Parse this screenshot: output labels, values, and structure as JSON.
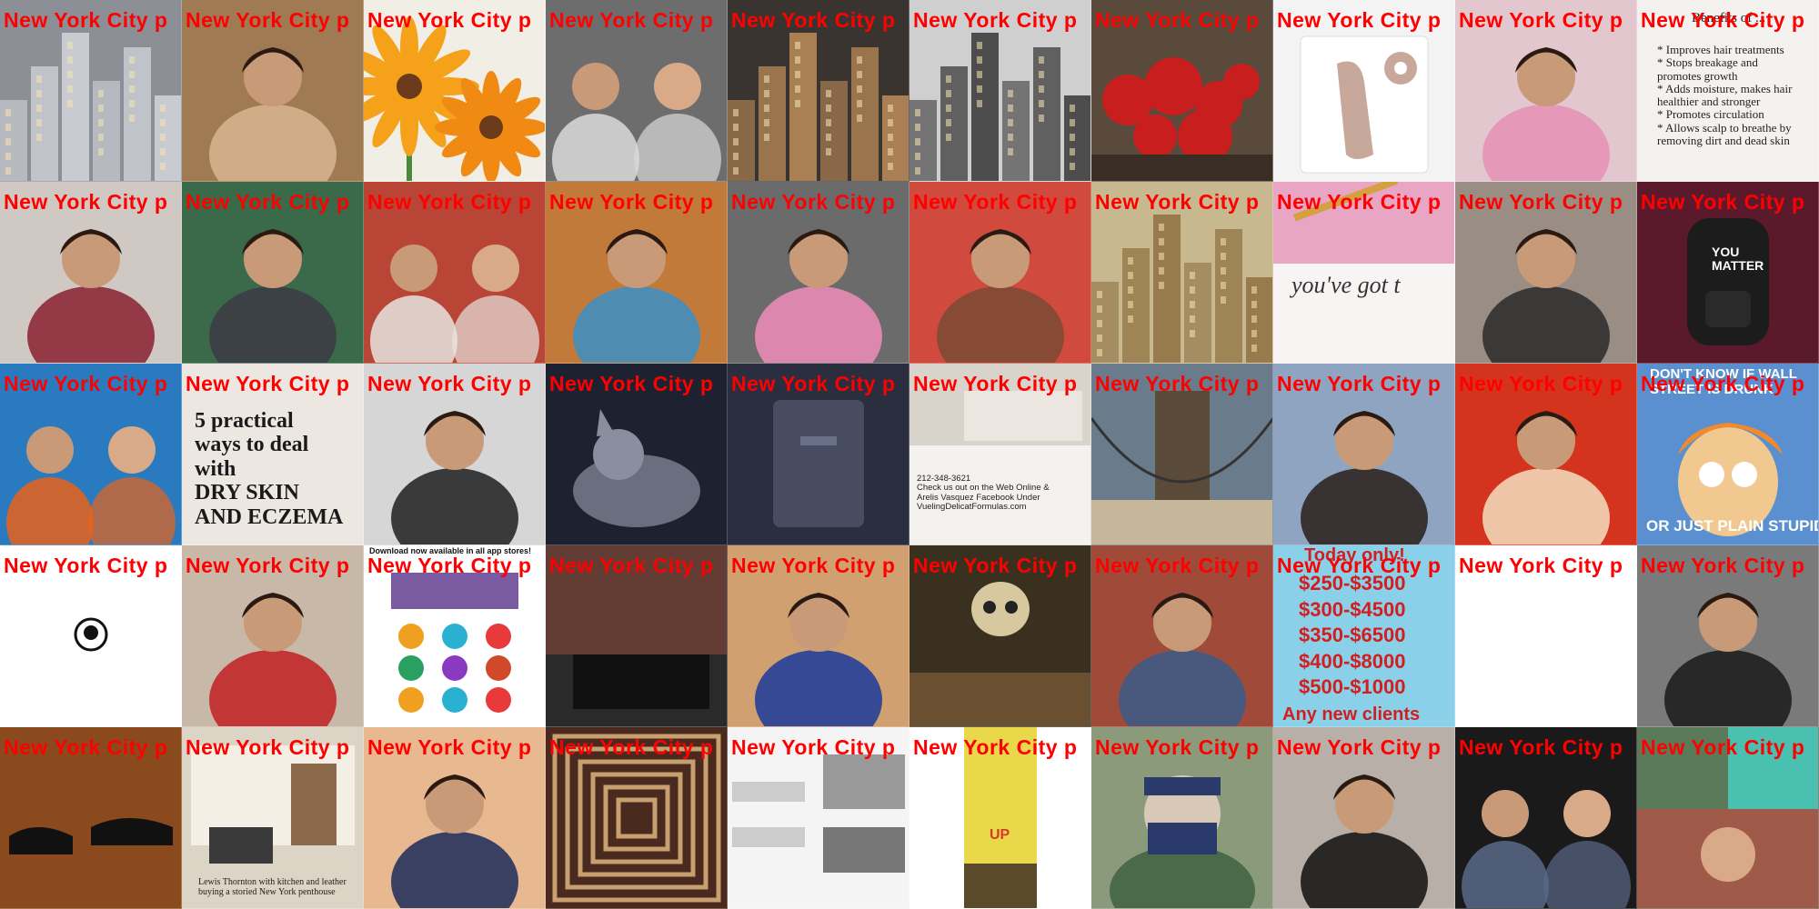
{
  "caption_text": "New York City p",
  "caption_color": "#ff0000",
  "tiles": [
    {
      "row": 0,
      "col": 0,
      "icon": "city-street-icon",
      "bg": "#8c8f96",
      "accent": "#d9dce2"
    },
    {
      "row": 0,
      "col": 1,
      "icon": "person-icon",
      "bg": "#a07a52",
      "accent": "#d8b590"
    },
    {
      "row": 0,
      "col": 2,
      "icon": "flower-icon",
      "bg": "#f1eee6",
      "accent": "#f5a21a"
    },
    {
      "row": 0,
      "col": 3,
      "icon": "couple-portrait-icon",
      "bg": "#6d6d6d",
      "accent": "#dadada"
    },
    {
      "row": 0,
      "col": 4,
      "icon": "building-icon",
      "bg": "#3a3430",
      "accent": "#c8935c"
    },
    {
      "row": 0,
      "col": 5,
      "icon": "building-icon",
      "bg": "#cfcfcf",
      "accent": "#2a2a2a"
    },
    {
      "row": 0,
      "col": 6,
      "icon": "ornaments-icon",
      "bg": "#5a4a3c",
      "accent": "#c81e1e"
    },
    {
      "row": 0,
      "col": 7,
      "icon": "product-icon",
      "bg": "#f3f3f3",
      "accent": "#c8a89a"
    },
    {
      "row": 0,
      "col": 8,
      "icon": "person-icon",
      "bg": "#e3c7cf",
      "accent": "#e58fb3"
    },
    {
      "row": 0,
      "col": 9,
      "icon": "text-document-icon",
      "bg": "#f4f2ef",
      "accent": "#222222"
    },
    {
      "row": 1,
      "col": 0,
      "icon": "person-icon",
      "bg": "#cfc8c3",
      "accent": "#8a2030"
    },
    {
      "row": 1,
      "col": 1,
      "icon": "person-icon",
      "bg": "#3a6a4a",
      "accent": "#3d3a44"
    },
    {
      "row": 1,
      "col": 2,
      "icon": "two-people-icon",
      "bg": "#b84536",
      "accent": "#e6e4e0"
    },
    {
      "row": 1,
      "col": 3,
      "icon": "person-icon",
      "bg": "#c27a3a",
      "accent": "#3a8fc8"
    },
    {
      "row": 1,
      "col": 4,
      "icon": "person-icon",
      "bg": "#6b6b6b",
      "accent": "#f08cb8"
    },
    {
      "row": 1,
      "col": 5,
      "icon": "person-icon",
      "bg": "#d04a3e",
      "accent": "#7a4a32"
    },
    {
      "row": 1,
      "col": 6,
      "icon": "skyline-icon",
      "bg": "#c8b890",
      "accent": "#8a6a3a"
    },
    {
      "row": 1,
      "col": 7,
      "icon": "stationery-icon",
      "bg": "#f8f4f4",
      "accent": "#e8a6c4"
    },
    {
      "row": 1,
      "col": 8,
      "icon": "person-icon",
      "bg": "#9a8e84",
      "accent": "#2a2a2a"
    },
    {
      "row": 1,
      "col": 9,
      "icon": "backpack-icon",
      "bg": "#5a1a2c",
      "accent": "#1c1c1c"
    },
    {
      "row": 2,
      "col": 0,
      "icon": "two-people-icon",
      "bg": "#2a7ac0",
      "accent": "#e8631a"
    },
    {
      "row": 2,
      "col": 1,
      "icon": "text-graphic-icon",
      "bg": "#ece7e0",
      "accent": "#1a1a1a"
    },
    {
      "row": 2,
      "col": 2,
      "icon": "person-icon",
      "bg": "#d6d6d6",
      "accent": "#1f1f1f"
    },
    {
      "row": 2,
      "col": 3,
      "icon": "dog-icon",
      "bg": "#1e2230",
      "accent": "#8a8fa0"
    },
    {
      "row": 2,
      "col": 4,
      "icon": "dark-object-icon",
      "bg": "#2a2e3e",
      "accent": "#474c60"
    },
    {
      "row": 2,
      "col": 5,
      "icon": "business-card-icon",
      "bg": "#d8d4cc",
      "accent": "#333333"
    },
    {
      "row": 2,
      "col": 6,
      "icon": "bridge-icon",
      "bg": "#6a7b8c",
      "accent": "#c7b79a"
    },
    {
      "row": 2,
      "col": 7,
      "icon": "person-icon",
      "bg": "#8ea4c0",
      "accent": "#2a1e1a"
    },
    {
      "row": 2,
      "col": 8,
      "icon": "person-icon",
      "bg": "#d4341e",
      "accent": "#f2e0c0"
    },
    {
      "row": 2,
      "col": 9,
      "icon": "cartoon-icon",
      "bg": "#5a8fd0",
      "accent": "#f08a2a"
    },
    {
      "row": 3,
      "col": 0,
      "icon": "logo-icon",
      "bg": "#ffffff",
      "accent": "#111111"
    },
    {
      "row": 3,
      "col": 1,
      "icon": "person-icon",
      "bg": "#c8b8a8",
      "accent": "#c21e22"
    },
    {
      "row": 3,
      "col": 2,
      "icon": "app-screenshot-icon",
      "bg": "#ffffff",
      "accent": "#2a9fd0"
    },
    {
      "row": 3,
      "col": 3,
      "icon": "kitchen-icon",
      "bg": "#2a2a2a",
      "accent": "#8a4a3a"
    },
    {
      "row": 3,
      "col": 4,
      "icon": "child-icon",
      "bg": "#d0a070",
      "accent": "#1a3a9a"
    },
    {
      "row": 3,
      "col": 5,
      "icon": "skull-icon",
      "bg": "#3a3020",
      "accent": "#d8c8a0"
    },
    {
      "row": 3,
      "col": 6,
      "icon": "person-icon",
      "bg": "#a04a3a",
      "accent": "#3a5a8a"
    },
    {
      "row": 3,
      "col": 7,
      "icon": "price-list-icon",
      "bg": "#8ad0e8",
      "accent": "#d21e1e"
    },
    {
      "row": 3,
      "col": 8,
      "icon": "text-document-icon",
      "bg": "#ffffff",
      "accent": "#333333"
    },
    {
      "row": 3,
      "col": 9,
      "icon": "person-icon",
      "bg": "#7a7a7a",
      "accent": "#1a1a1a"
    },
    {
      "row": 4,
      "col": 0,
      "icon": "shoes-icon",
      "bg": "#8a4a1e",
      "accent": "#111111"
    },
    {
      "row": 4,
      "col": 1,
      "icon": "room-interior-icon",
      "bg": "#dcd4c4",
      "accent": "#3a3a3a"
    },
    {
      "row": 4,
      "col": 2,
      "icon": "person-icon",
      "bg": "#e8b890",
      "accent": "#1a2a5a"
    },
    {
      "row": 4,
      "col": 3,
      "icon": "ceiling-icon",
      "bg": "#4a2a1e",
      "accent": "#c8a070"
    },
    {
      "row": 4,
      "col": 4,
      "icon": "article-icon",
      "bg": "#f4f4f4",
      "accent": "#555555"
    },
    {
      "row": 4,
      "col": 5,
      "icon": "poster-icon",
      "bg": "#ffffff",
      "accent": "#e8d84a"
    },
    {
      "row": 4,
      "col": 6,
      "icon": "anime-character-icon",
      "bg": "#8a9a7a",
      "accent": "#2a3a6a"
    },
    {
      "row": 4,
      "col": 7,
      "icon": "person-icon",
      "bg": "#b8b0a8",
      "accent": "#111111"
    },
    {
      "row": 4,
      "col": 8,
      "icon": "two-people-icon",
      "bg": "#1a1a1a",
      "accent": "#5a6a8a"
    },
    {
      "row": 4,
      "col": 9,
      "icon": "collage-icon",
      "bg": "#6a5a4a",
      "accent": "#c82a2a"
    }
  ],
  "texts": {
    "r0c9_heading": "Benefits of ...",
    "r0c9_body": "* Improves hair treatments\n* Stops breakage and\npromotes growth\n* Adds moisture, makes hair\nhealthier and stronger\n* Promotes circulation\n* Allows scalp to breathe by\nremoving dirt and dead skin",
    "r1c7_note": "you've got t",
    "r1c9_bag": "YOU\nMATTER",
    "r2c1_poster": "5 practical\nways to deal\nwith\nDRY SKIN\nAND ECZEMA",
    "r2c5_card": "212-348-3621\nCheck us out on the Web Online &\nArelis Vasquez Facebook Under\nVuelingDelicatFormulas.com",
    "r2c9_top": "DON'T KNOW IF WALL\nSTREET IS DRUNK",
    "r2c9_bottom": "OR JUST PLAIN STUPID",
    "r3c2_banner": "Download now available in all app stores!",
    "r3c7_title": "Today only!",
    "r3c7_prices": "$250-$3500\n$300-$4500\n$350-$6500\n$400-$8000\n$500-$1000",
    "r3c7_footer": "Any new clients",
    "r4c1_caption": "Lewis Thornton with kitchen and leather\nbuying a storied New York penthouse",
    "r4c5_sign": "UP"
  }
}
